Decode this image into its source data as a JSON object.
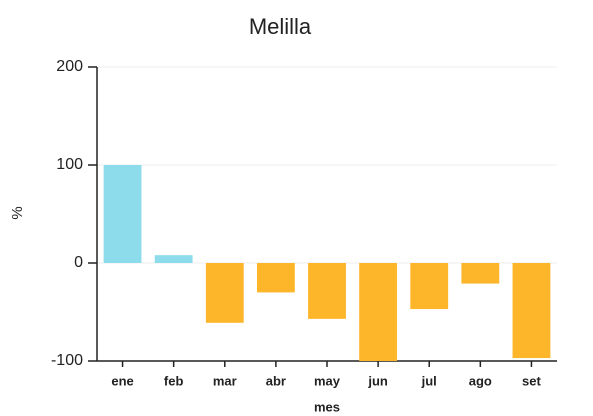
{
  "chart_data": {
    "type": "bar",
    "title": "Melilla",
    "x_label": "mes",
    "y_label": "%",
    "categories": [
      "ene",
      "feb",
      "mar",
      "abr",
      "may",
      "jun",
      "jul",
      "ago",
      "set"
    ],
    "values": [
      100,
      8,
      -61,
      -30,
      -57,
      -100,
      -47,
      -21,
      -97
    ],
    "positive_color": "#8ddcec",
    "negative_color": "#fdb52a",
    "ylim": [
      -100,
      200
    ],
    "yticks": [
      -100,
      0,
      100,
      200
    ],
    "grid": true
  }
}
